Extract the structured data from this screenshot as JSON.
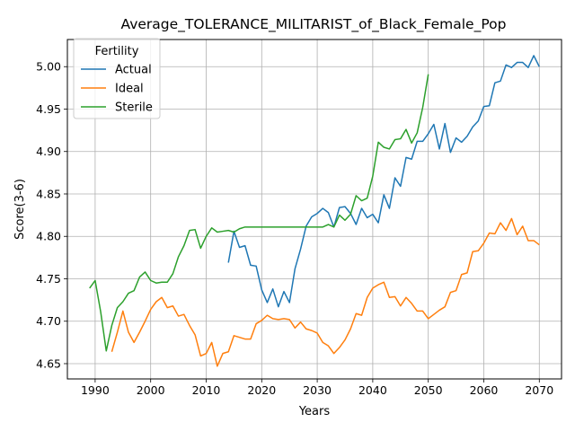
{
  "chart_data": {
    "type": "line",
    "title": "Average_TOLERANCE_MILITARIST_of_Black_Female_Pop",
    "xlabel": "Years",
    "ylabel": "Score(3-6)",
    "xlim": [
      1985,
      2074
    ],
    "ylim": [
      4.632,
      5.032
    ],
    "xticks": [
      1990,
      2000,
      2010,
      2020,
      2030,
      2040,
      2050,
      2060,
      2070
    ],
    "yticks": [
      4.65,
      4.7,
      4.75,
      4.8,
      4.85,
      4.9,
      4.95,
      5.0
    ],
    "ytick_labels": [
      "4.65",
      "4.70",
      "4.75",
      "4.80",
      "4.85",
      "4.90",
      "4.95",
      "5.00"
    ],
    "grid": true,
    "legend": {
      "title": "Fertility",
      "placement": "top-left"
    },
    "series": [
      {
        "name": "Actual",
        "color": "#1f77b4",
        "x": [
          2014,
          2015,
          2016,
          2017,
          2018,
          2019,
          2020,
          2021,
          2022,
          2023,
          2024,
          2025,
          2026,
          2027,
          2028,
          2029,
          2030,
          2031,
          2032,
          2033,
          2034,
          2035,
          2036,
          2037,
          2038,
          2039,
          2040,
          2041,
          2042,
          2043,
          2044,
          2045,
          2046,
          2047,
          2048,
          2049,
          2050,
          2051,
          2052,
          2053,
          2054,
          2055,
          2056,
          2057,
          2058,
          2059,
          2060,
          2061,
          2062,
          2063,
          2064,
          2065,
          2066,
          2067,
          2068,
          2069,
          2070
        ],
        "y": [
          4.769,
          4.806,
          4.787,
          4.789,
          4.766,
          4.765,
          4.737,
          4.722,
          4.738,
          4.717,
          4.735,
          4.722,
          4.762,
          4.785,
          4.812,
          4.823,
          4.827,
          4.833,
          4.828,
          4.811,
          4.834,
          4.835,
          4.827,
          4.814,
          4.833,
          4.822,
          4.826,
          4.816,
          4.849,
          4.833,
          4.869,
          4.859,
          4.893,
          4.891,
          4.912,
          4.912,
          4.921,
          4.932,
          4.903,
          4.933,
          4.899,
          4.916,
          4.911,
          4.918,
          4.929,
          4.936,
          4.953,
          4.954,
          4.981,
          4.983,
          5.002,
          4.999,
          5.005,
          5.005,
          4.999,
          5.013,
          5.0
        ]
      },
      {
        "name": "Ideal",
        "color": "#ff7f0e",
        "x": [
          1993,
          1994,
          1995,
          1996,
          1997,
          1998,
          1999,
          2000,
          2001,
          2002,
          2003,
          2004,
          2005,
          2006,
          2007,
          2008,
          2009,
          2010,
          2011,
          2012,
          2013,
          2014,
          2015,
          2016,
          2017,
          2018,
          2019,
          2020,
          2021,
          2022,
          2023,
          2024,
          2025,
          2026,
          2027,
          2028,
          2029,
          2030,
          2031,
          2032,
          2033,
          2034,
          2035,
          2036,
          2037,
          2038,
          2039,
          2040,
          2041,
          2042,
          2043,
          2044,
          2045,
          2046,
          2047,
          2048,
          2049,
          2050,
          2051,
          2052,
          2053,
          2054,
          2055,
          2056,
          2057,
          2058,
          2059,
          2060,
          2061,
          2062,
          2063,
          2064,
          2065,
          2066,
          2067,
          2068,
          2069,
          2070
        ],
        "y": [
          4.664,
          4.687,
          4.712,
          4.687,
          4.675,
          4.687,
          4.7,
          4.714,
          4.723,
          4.728,
          4.716,
          4.718,
          4.706,
          4.708,
          4.695,
          4.684,
          4.659,
          4.662,
          4.675,
          4.647,
          4.662,
          4.664,
          4.683,
          4.681,
          4.679,
          4.679,
          4.697,
          4.701,
          4.707,
          4.703,
          4.702,
          4.703,
          4.702,
          4.692,
          4.699,
          4.691,
          4.689,
          4.686,
          4.675,
          4.671,
          4.662,
          4.669,
          4.678,
          4.691,
          4.709,
          4.707,
          4.728,
          4.739,
          4.743,
          4.746,
          4.728,
          4.729,
          4.718,
          4.728,
          4.721,
          4.712,
          4.712,
          4.703,
          4.708,
          4.713,
          4.717,
          4.734,
          4.736,
          4.755,
          4.757,
          4.782,
          4.783,
          4.792,
          4.804,
          4.803,
          4.816,
          4.807,
          4.821,
          4.802,
          4.812,
          4.795,
          4.795,
          4.79
        ]
      },
      {
        "name": "Sterile",
        "color": "#2ca02c",
        "x": [
          1989,
          1990,
          1991,
          1992,
          1993,
          1994,
          1995,
          1996,
          1997,
          1998,
          1999,
          2000,
          2001,
          2002,
          2003,
          2004,
          2005,
          2006,
          2007,
          2008,
          2009,
          2010,
          2011,
          2012,
          2013,
          2014,
          2015,
          2016,
          2017,
          2018,
          2019,
          2020,
          2021,
          2022,
          2023,
          2024,
          2025,
          2026,
          2027,
          2028,
          2029,
          2030,
          2031,
          2032,
          2033,
          2034,
          2035,
          2036,
          2037,
          2038,
          2039,
          2040,
          2041,
          2042,
          2043,
          2044,
          2045,
          2046,
          2047,
          2048,
          2049,
          2050
        ],
        "y": [
          4.739,
          4.748,
          4.711,
          4.665,
          4.695,
          4.716,
          4.723,
          4.733,
          4.736,
          4.752,
          4.758,
          4.748,
          4.745,
          4.746,
          4.746,
          4.756,
          4.776,
          4.789,
          4.807,
          4.808,
          4.786,
          4.8,
          4.81,
          4.805,
          4.806,
          4.807,
          4.805,
          4.809,
          4.811,
          4.811,
          4.811,
          4.811,
          4.811,
          4.811,
          4.811,
          4.811,
          4.811,
          4.811,
          4.811,
          4.811,
          4.811,
          4.811,
          4.811,
          4.814,
          4.811,
          4.825,
          4.819,
          4.826,
          4.848,
          4.842,
          4.845,
          4.871,
          4.911,
          4.905,
          4.903,
          4.914,
          4.915,
          4.926,
          4.91,
          4.922,
          4.952,
          4.991
        ]
      }
    ]
  }
}
